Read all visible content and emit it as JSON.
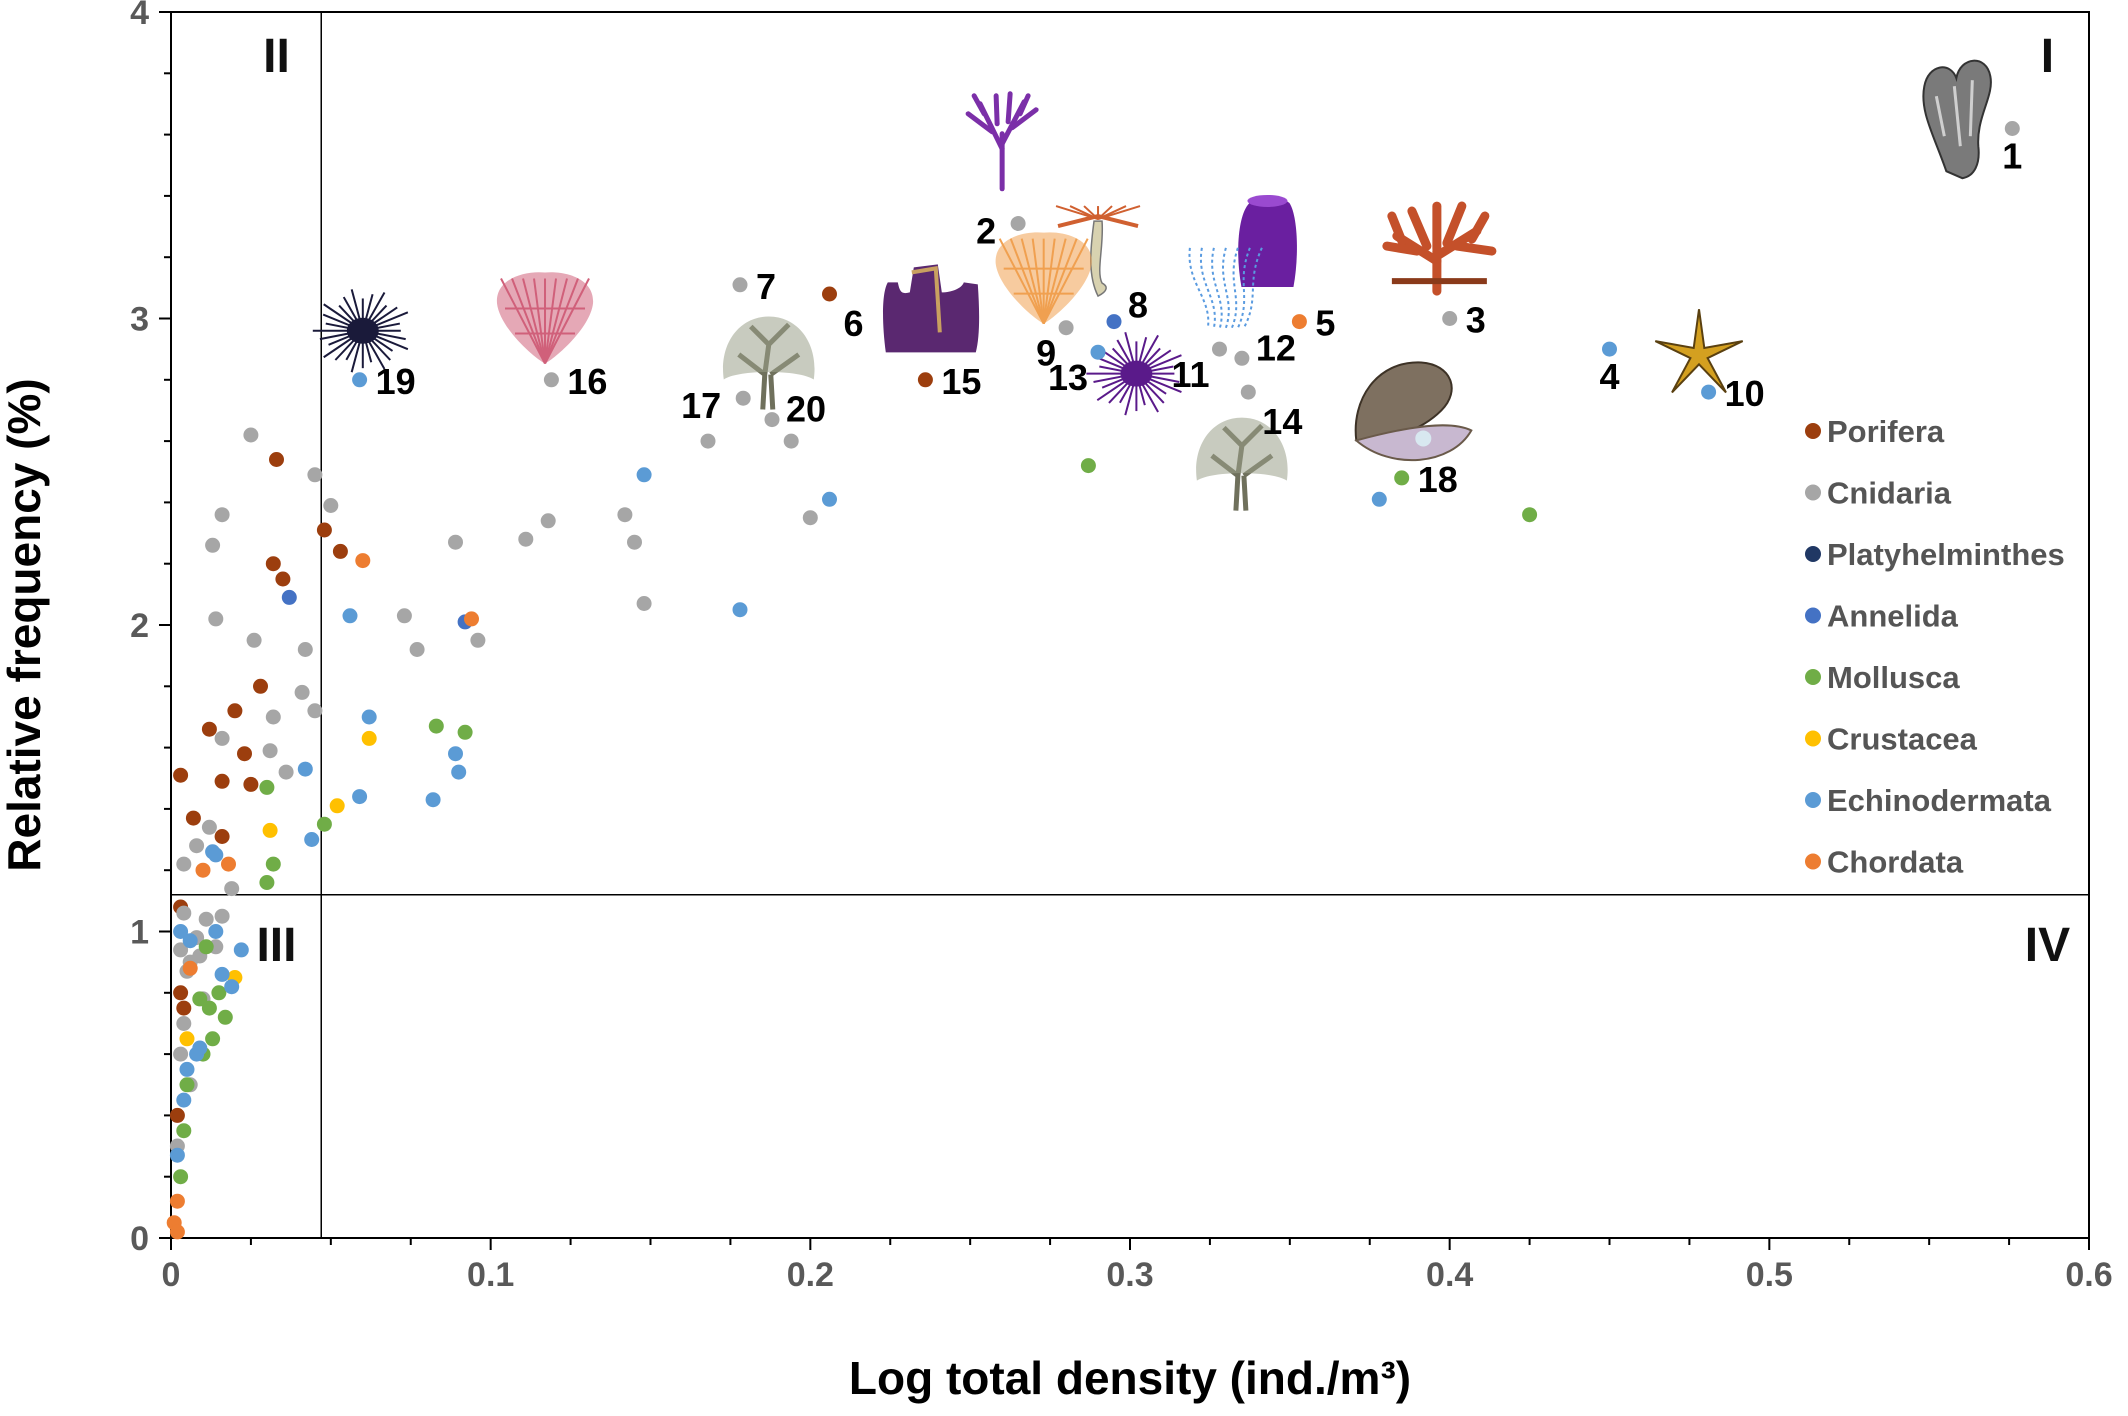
{
  "chart_data": {
    "type": "scatter",
    "xlabel": "Log total density (ind./m³)",
    "ylabel": "Relative frequency (%)",
    "xlim": [
      0,
      0.6
    ],
    "ylim": [
      0,
      4
    ],
    "x_ticks": [
      "0",
      "0.1",
      "0.2",
      "0.3",
      "0.4",
      "0.5",
      "0.6"
    ],
    "y_ticks": [
      "0",
      "1",
      "2",
      "3",
      "4"
    ],
    "grid": false,
    "legend_position": "right",
    "thresholds": {
      "x": 0.047,
      "y": 1.12
    },
    "quadrants": [
      {
        "label": "I",
        "x": 0.587,
        "y": 3.86
      },
      {
        "label": "II",
        "x": 0.033,
        "y": 3.86
      },
      {
        "label": "III",
        "x": 0.033,
        "y": 0.96
      },
      {
        "label": "IV",
        "x": 0.587,
        "y": 0.96
      }
    ],
    "series": [
      {
        "name": "Porifera",
        "color": "#9c3e0e",
        "points": [
          [
            0.003,
            1.51
          ],
          [
            0.007,
            1.37
          ],
          [
            0.012,
            1.66
          ],
          [
            0.016,
            1.49
          ],
          [
            0.016,
            1.31
          ],
          [
            0.02,
            1.72
          ],
          [
            0.023,
            1.58
          ],
          [
            0.025,
            1.48
          ],
          [
            0.028,
            1.8
          ],
          [
            0.032,
            2.2
          ],
          [
            0.033,
            2.54
          ],
          [
            0.035,
            2.15
          ],
          [
            0.048,
            2.31
          ],
          [
            0.053,
            2.24
          ],
          [
            0.206,
            3.08
          ],
          [
            0.236,
            2.8
          ],
          [
            0.003,
            1.08
          ],
          [
            0.004,
            0.75
          ],
          [
            0.003,
            0.8
          ],
          [
            0.002,
            0.4
          ]
        ]
      },
      {
        "name": "Cnidaria",
        "color": "#a6a6a6",
        "points": [
          [
            0.004,
            1.22
          ],
          [
            0.008,
            1.28
          ],
          [
            0.012,
            1.34
          ],
          [
            0.013,
            2.26
          ],
          [
            0.014,
            2.02
          ],
          [
            0.016,
            2.36
          ],
          [
            0.016,
            1.63
          ],
          [
            0.019,
            1.14
          ],
          [
            0.025,
            2.62
          ],
          [
            0.026,
            1.95
          ],
          [
            0.031,
            1.59
          ],
          [
            0.032,
            1.7
          ],
          [
            0.036,
            1.52
          ],
          [
            0.041,
            1.78
          ],
          [
            0.042,
            1.92
          ],
          [
            0.045,
            1.72
          ],
          [
            0.045,
            2.49
          ],
          [
            0.05,
            2.39
          ],
          [
            0.073,
            2.03
          ],
          [
            0.077,
            1.92
          ],
          [
            0.089,
            2.27
          ],
          [
            0.096,
            1.95
          ],
          [
            0.111,
            2.28
          ],
          [
            0.118,
            2.34
          ],
          [
            0.119,
            2.8
          ],
          [
            0.142,
            2.36
          ],
          [
            0.145,
            2.27
          ],
          [
            0.148,
            2.07
          ],
          [
            0.168,
            2.6
          ],
          [
            0.178,
            3.11
          ],
          [
            0.179,
            2.74
          ],
          [
            0.188,
            2.67
          ],
          [
            0.194,
            2.6
          ],
          [
            0.2,
            2.35
          ],
          [
            0.265,
            3.31
          ],
          [
            0.28,
            2.97
          ],
          [
            0.328,
            2.9
          ],
          [
            0.335,
            2.87
          ],
          [
            0.337,
            2.76
          ],
          [
            0.4,
            3.0
          ],
          [
            0.576,
            3.62
          ],
          [
            0.004,
            1.06
          ],
          [
            0.008,
            0.98
          ],
          [
            0.011,
            1.04
          ],
          [
            0.014,
            0.95
          ],
          [
            0.006,
            0.9
          ],
          [
            0.004,
            0.7
          ],
          [
            0.003,
            0.6
          ],
          [
            0.006,
            0.5
          ],
          [
            0.002,
            0.3
          ],
          [
            0.009,
            0.92
          ],
          [
            0.016,
            1.05
          ],
          [
            0.003,
            0.94
          ],
          [
            0.01,
            0.78
          ],
          [
            0.005,
            0.87
          ]
        ]
      },
      {
        "name": "Platyhelminthes",
        "color": "#203864",
        "points": []
      },
      {
        "name": "Annelida",
        "color": "#4472c4",
        "points": [
          [
            0.037,
            2.09
          ],
          [
            0.092,
            2.01
          ],
          [
            0.295,
            2.99
          ]
        ]
      },
      {
        "name": "Mollusca",
        "color": "#70ad47",
        "points": [
          [
            0.03,
            1.47
          ],
          [
            0.03,
            1.16
          ],
          [
            0.032,
            1.22
          ],
          [
            0.048,
            1.35
          ],
          [
            0.083,
            1.67
          ],
          [
            0.092,
            1.65
          ],
          [
            0.287,
            2.52
          ],
          [
            0.385,
            2.48
          ],
          [
            0.425,
            2.36
          ],
          [
            0.005,
            0.5
          ],
          [
            0.01,
            0.6
          ],
          [
            0.013,
            0.65
          ],
          [
            0.012,
            0.75
          ],
          [
            0.015,
            0.8
          ],
          [
            0.009,
            0.78
          ],
          [
            0.004,
            0.35
          ],
          [
            0.003,
            0.2
          ],
          [
            0.011,
            0.95
          ],
          [
            0.017,
            0.72
          ]
        ]
      },
      {
        "name": "Crustacea",
        "color": "#ffc000",
        "points": [
          [
            0.031,
            1.33
          ],
          [
            0.052,
            1.41
          ],
          [
            0.062,
            1.63
          ],
          [
            0.02,
            0.85
          ],
          [
            0.005,
            0.65
          ]
        ]
      },
      {
        "name": "Echinodermata",
        "color": "#5b9bd5",
        "points": [
          [
            0.013,
            1.26
          ],
          [
            0.014,
            1.25
          ],
          [
            0.042,
            1.53
          ],
          [
            0.044,
            1.3
          ],
          [
            0.056,
            2.03
          ],
          [
            0.059,
            2.8
          ],
          [
            0.059,
            1.44
          ],
          [
            0.062,
            1.7
          ],
          [
            0.082,
            1.43
          ],
          [
            0.089,
            1.58
          ],
          [
            0.09,
            1.52
          ],
          [
            0.148,
            2.49
          ],
          [
            0.178,
            2.05
          ],
          [
            0.206,
            2.41
          ],
          [
            0.29,
            2.89
          ],
          [
            0.378,
            2.41
          ],
          [
            0.45,
            2.9
          ],
          [
            0.481,
            2.76
          ],
          [
            0.003,
            1.0
          ],
          [
            0.006,
            0.97
          ],
          [
            0.014,
            1.0
          ],
          [
            0.016,
            0.86
          ],
          [
            0.022,
            0.94
          ],
          [
            0.019,
            0.82
          ],
          [
            0.008,
            0.6
          ],
          [
            0.004,
            0.45
          ],
          [
            0.002,
            0.27
          ],
          [
            0.009,
            0.62
          ],
          [
            0.005,
            0.55
          ]
        ]
      },
      {
        "name": "Chordata",
        "color": "#ed7d31",
        "points": [
          [
            0.01,
            1.2
          ],
          [
            0.018,
            1.22
          ],
          [
            0.094,
            2.02
          ],
          [
            0.06,
            2.21
          ],
          [
            0.353,
            2.99
          ],
          [
            0.001,
            0.05
          ],
          [
            0.002,
            0.12
          ],
          [
            0.002,
            0.02
          ],
          [
            0.006,
            0.88
          ]
        ]
      }
    ],
    "annotations": [
      {
        "label": "1",
        "x": 0.576,
        "y": 3.62,
        "align": "below"
      },
      {
        "label": "2",
        "x": 0.265,
        "y": 3.31,
        "align": "left"
      },
      {
        "label": "3",
        "x": 0.4,
        "y": 3.0,
        "align": "right"
      },
      {
        "label": "4",
        "x": 0.45,
        "y": 2.9,
        "align": "below"
      },
      {
        "label": "5",
        "x": 0.353,
        "y": 2.99,
        "align": "right"
      },
      {
        "label": "6",
        "x": 0.206,
        "y": 3.08,
        "align": "below-right"
      },
      {
        "label": "7",
        "x": 0.178,
        "y": 3.11,
        "align": "right"
      },
      {
        "label": "8",
        "x": 0.295,
        "y": 2.99,
        "align": "above-right"
      },
      {
        "label": "9",
        "x": 0.28,
        "y": 2.97,
        "align": "below-left"
      },
      {
        "label": "10",
        "x": 0.481,
        "y": 2.76,
        "align": "right"
      },
      {
        "label": "11",
        "x": 0.328,
        "y": 2.9,
        "align": "below-left"
      },
      {
        "label": "12",
        "x": 0.335,
        "y": 2.87,
        "align": "right-up"
      },
      {
        "label": "13",
        "x": 0.29,
        "y": 2.89,
        "align": "below-left"
      },
      {
        "label": "14",
        "x": 0.337,
        "y": 2.76,
        "align": "below-right"
      },
      {
        "label": "15",
        "x": 0.236,
        "y": 2.8,
        "align": "right"
      },
      {
        "label": "16",
        "x": 0.119,
        "y": 2.8,
        "align": "right"
      },
      {
        "label": "17",
        "x": 0.179,
        "y": 2.74,
        "align": "left"
      },
      {
        "label": "18",
        "x": 0.385,
        "y": 2.48,
        "align": "right"
      },
      {
        "label": "19",
        "x": 0.059,
        "y": 2.8,
        "align": "right"
      },
      {
        "label": "20",
        "x": 0.188,
        "y": 2.67,
        "align": "right-up"
      }
    ],
    "organism_icons": [
      {
        "name": "sponge-icon",
        "x": 0.561,
        "y": 3.66,
        "color": "#7a7a7a"
      },
      {
        "name": "sea-fan-icon",
        "x": 0.26,
        "y": 3.57,
        "color": "#7b2fa8"
      },
      {
        "name": "jellyfish-icon",
        "x": 0.29,
        "y": 3.22,
        "color": "#c85a1e"
      },
      {
        "name": "soft-coral-icon",
        "x": 0.343,
        "y": 3.24,
        "color": "#6a1fa0"
      },
      {
        "name": "red-coral-icon",
        "x": 0.396,
        "y": 3.22,
        "color": "#c4502a"
      },
      {
        "name": "orange-gorgonian-icon",
        "x": 0.273,
        "y": 3.13,
        "color": "#f0a050"
      },
      {
        "name": "tube-sponge-icon",
        "x": 0.238,
        "y": 3.02,
        "color": "#5a2870"
      },
      {
        "name": "sea-urchin-icon",
        "x": 0.06,
        "y": 2.96,
        "color": "#1a1a3a"
      },
      {
        "name": "pink-gorgonian-icon",
        "x": 0.117,
        "y": 3.0,
        "color": "#d0607a"
      },
      {
        "name": "branching-coral-icon",
        "x": 0.187,
        "y": 2.85,
        "color": "#9aa08a"
      },
      {
        "name": "hydroid-icon",
        "x": 0.33,
        "y": 3.1,
        "color": "#5a9be0"
      },
      {
        "name": "purple-urchin-icon",
        "x": 0.302,
        "y": 2.82,
        "color": "#5a1a8a"
      },
      {
        "name": "branching-coral-icon",
        "x": 0.335,
        "y": 2.52,
        "color": "#9aa08a"
      },
      {
        "name": "oyster-icon",
        "x": 0.388,
        "y": 2.7,
        "color": "#6a5a4a"
      },
      {
        "name": "starfish-icon",
        "x": 0.478,
        "y": 2.88,
        "color": "#d4a020"
      }
    ]
  }
}
